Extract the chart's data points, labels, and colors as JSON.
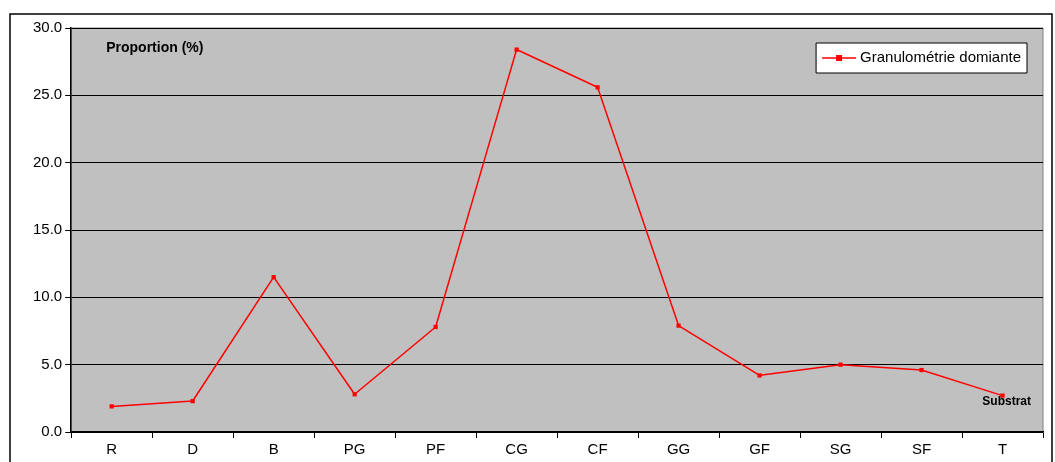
{
  "chart_data": {
    "type": "line",
    "xlabel": "Substrat",
    "ylabel": "Proportion (%)",
    "categories": [
      "R",
      "D",
      "B",
      "PG",
      "PF",
      "CG",
      "CF",
      "GG",
      "GF",
      "SG",
      "SF",
      "T"
    ],
    "series": [
      {
        "name": "Granulométrie domiante",
        "color": "#ff0000",
        "values": [
          1.9,
          2.3,
          11.5,
          2.8,
          7.8,
          28.4,
          25.6,
          7.9,
          4.2,
          5.0,
          4.6,
          2.7
        ]
      }
    ],
    "ylim": [
      0,
      30
    ],
    "yticks": [
      {
        "value": 0,
        "label": "0.0"
      },
      {
        "value": 5,
        "label": "5.0"
      },
      {
        "value": 10,
        "label": "10.0"
      },
      {
        "value": 15,
        "label": "15.0"
      },
      {
        "value": 20,
        "label": "20.0"
      },
      {
        "value": 25,
        "label": "25.0"
      },
      {
        "value": 30,
        "label": "30.0"
      }
    ],
    "grid": "y",
    "legend": "top right",
    "marker": "square",
    "line_style": "solid"
  }
}
